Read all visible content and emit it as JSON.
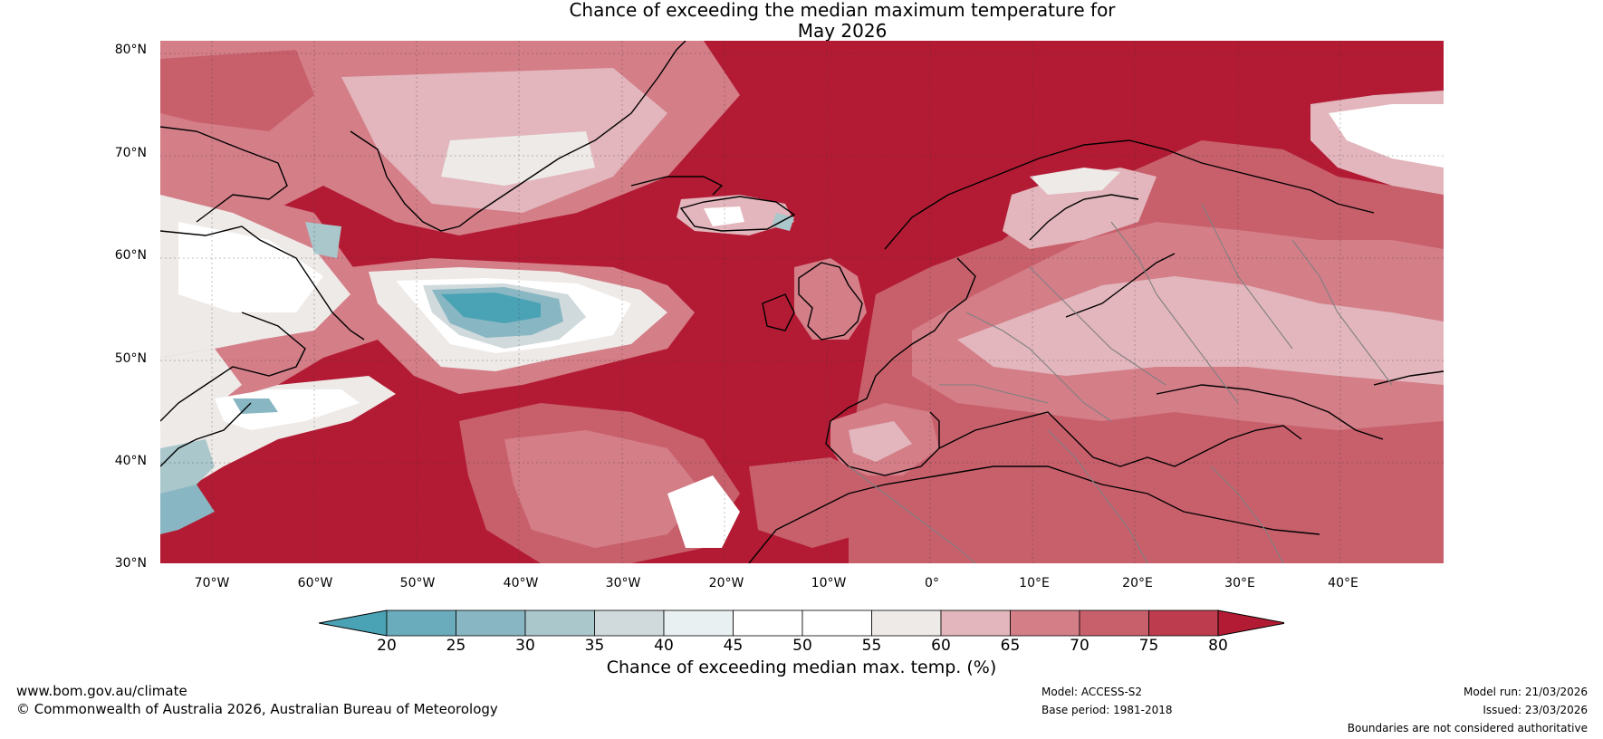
{
  "title_line1": "Chance of exceeding the median maximum temperature for",
  "title_line2": "May 2026",
  "lat_labels": [
    "80°N",
    "70°N",
    "60°N",
    "50°N",
    "40°N",
    "30°N"
  ],
  "lon_labels": [
    "70°W",
    "60°W",
    "50°W",
    "40°W",
    "30°W",
    "20°W",
    "10°W",
    "0°",
    "10°E",
    "20°E",
    "30°E",
    "40°E"
  ],
  "colorbar": {
    "ticks": [
      "20",
      "25",
      "30",
      "35",
      "40",
      "45",
      "50",
      "55",
      "60",
      "65",
      "70",
      "75",
      "80"
    ],
    "colors": [
      "#4aa3b5",
      "#6aacbc",
      "#88b7c3",
      "#aac7cc",
      "#d0d9db",
      "#e9f0f1",
      "#ffffff",
      "#ffffff",
      "#eeeae8",
      "#e2b6bc",
      "#d47e88",
      "#c8606c",
      "#bd3c4e",
      "#b31b34"
    ],
    "title": "Chance of exceeding median max. temp. (%)"
  },
  "footer": {
    "website": "www.bom.gov.au/climate",
    "copyright": "© Commonwealth of Australia 2026, Australian Bureau of Meteorology",
    "model": "Model: ACCESS-S2",
    "base_period": "Base period: 1981-2018",
    "model_run": "Model run: 21/03/2026",
    "issued": "Issued: 23/03/2026",
    "disclaimer": "Boundaries are not considered authoritative"
  }
}
